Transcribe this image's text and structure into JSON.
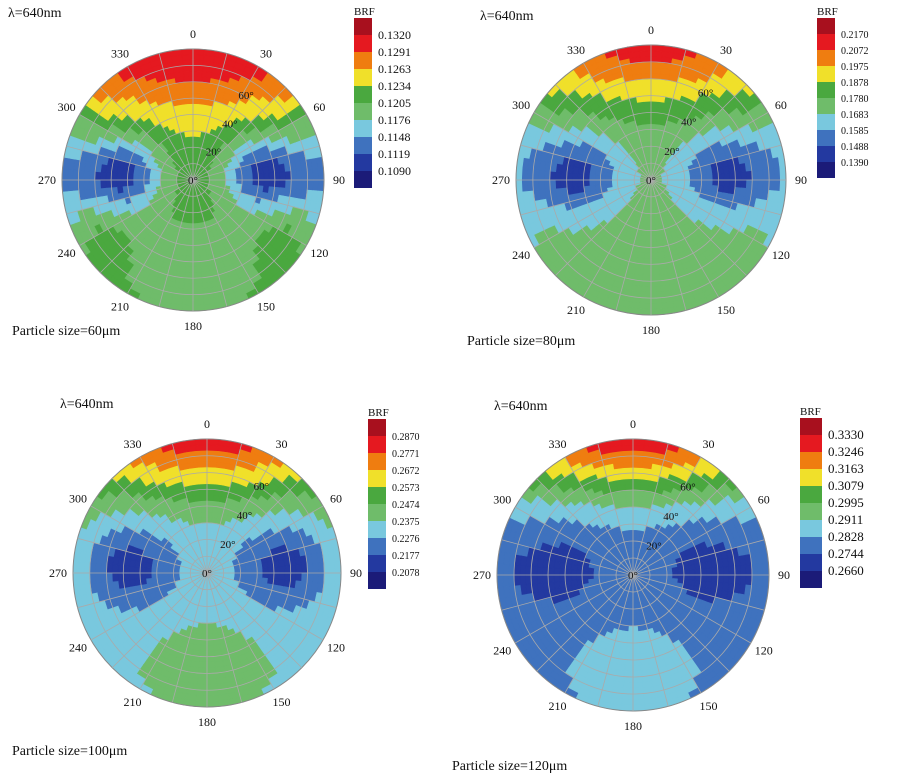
{
  "chart_data": [
    {
      "type": "heatmap",
      "subtype": "polar-contour",
      "title": "λ=640nm",
      "caption": "Particle size=60μm",
      "legend_title": "BRF",
      "legend_levels": [
        0.132,
        0.1291,
        0.1263,
        0.1234,
        0.1205,
        0.1176,
        0.1148,
        0.1119,
        0.109
      ],
      "legend_labels": [
        "0.1320",
        "0.1291",
        "0.1263",
        "0.1234",
        "0.1205",
        "0.1176",
        "0.1148",
        "0.1119",
        "0.1090"
      ],
      "azimuth_labels": [
        "0",
        "30",
        "60",
        "90",
        "120",
        "150",
        "180",
        "210",
        "240",
        "270",
        "300",
        "330"
      ],
      "zenith_labels": [
        "0°",
        "20°",
        "40°",
        "60°"
      ],
      "zenith_range": [
        0,
        80
      ],
      "features": {
        "forward_peak": 0.132,
        "side_min": 0.11,
        "center": 0.1234,
        "backscatter_lobe": 0.1176,
        "rim_side": 0.1148
      }
    },
    {
      "type": "heatmap",
      "subtype": "polar-contour",
      "title": "λ=640nm",
      "caption": "Particle size=80μm",
      "legend_title": "BRF",
      "legend_levels": [
        0.217,
        0.2072,
        0.1975,
        0.1878,
        0.178,
        0.1683,
        0.1585,
        0.1488,
        0.139
      ],
      "legend_labels": [
        "0.2170",
        "0.2072",
        "0.1975",
        "0.1878",
        "0.1780",
        "0.1683",
        "0.1585",
        "0.1488",
        "0.1390"
      ],
      "azimuth_labels": [
        "0",
        "30",
        "60",
        "90",
        "120",
        "150",
        "180",
        "210",
        "240",
        "270",
        "300",
        "330"
      ],
      "zenith_labels": [
        "0°",
        "20°",
        "40°",
        "60°"
      ],
      "zenith_range": [
        0,
        80
      ],
      "features": {
        "forward_peak": 0.212,
        "side_min": 0.144,
        "center": 0.173,
        "backscatter_lobe": 0.173,
        "rim_side": 0.163
      }
    },
    {
      "type": "heatmap",
      "subtype": "polar-contour",
      "title": "λ=640nm",
      "caption": "Particle size=100μm",
      "legend_title": "BRF",
      "legend_levels": [
        0.287,
        0.2771,
        0.2672,
        0.2573,
        0.2474,
        0.2375,
        0.2276,
        0.2177,
        0.2078
      ],
      "legend_labels": [
        "0.2870",
        "0.2771",
        "0.2672",
        "0.2573",
        "0.2474",
        "0.2375",
        "0.2276",
        "0.2177",
        "0.2078"
      ],
      "azimuth_labels": [
        "0",
        "30",
        "60",
        "90",
        "120",
        "150",
        "180",
        "210",
        "240",
        "270",
        "300",
        "330"
      ],
      "zenith_labels": [
        "0°",
        "20°",
        "40°",
        "60°"
      ],
      "zenith_range": [
        0,
        80
      ],
      "features": {
        "forward_peak": 0.282,
        "side_min": 0.213,
        "center": 0.233,
        "backscatter_lobe": 0.242,
        "rim_side": 0.242
      }
    },
    {
      "type": "heatmap",
      "subtype": "polar-contour",
      "title": "λ=640nm",
      "caption": "Particle size=120μm",
      "legend_title": "BRF",
      "legend_levels": [
        0.333,
        0.3246,
        0.3163,
        0.3079,
        0.2995,
        0.2911,
        0.2828,
        0.2744,
        0.266
      ],
      "legend_labels": [
        "0.3330",
        "0.3246",
        "0.3163",
        "0.3079",
        "0.2995",
        "0.2911",
        "0.2828",
        "0.2744",
        "0.2660"
      ],
      "azimuth_labels": [
        "0",
        "30",
        "60",
        "90",
        "120",
        "150",
        "180",
        "210",
        "240",
        "270",
        "300",
        "330"
      ],
      "zenith_labels": [
        "0°",
        "20°",
        "40°",
        "60°"
      ],
      "zenith_range": [
        0,
        80
      ],
      "features": {
        "forward_peak": 0.33,
        "side_min": 0.27,
        "center": 0.278,
        "backscatter_lobe": 0.287,
        "rim_side": 0.278
      }
    }
  ],
  "colors": {
    "scale": [
      "#1b1b78",
      "#2339a0",
      "#3f72be",
      "#79c8de",
      "#6fbc6a",
      "#4aa83f",
      "#f0e02a",
      "#ef7d10",
      "#e51920",
      "#a8101e"
    ],
    "grid": "#aaaaaa",
    "text": "#111111"
  }
}
